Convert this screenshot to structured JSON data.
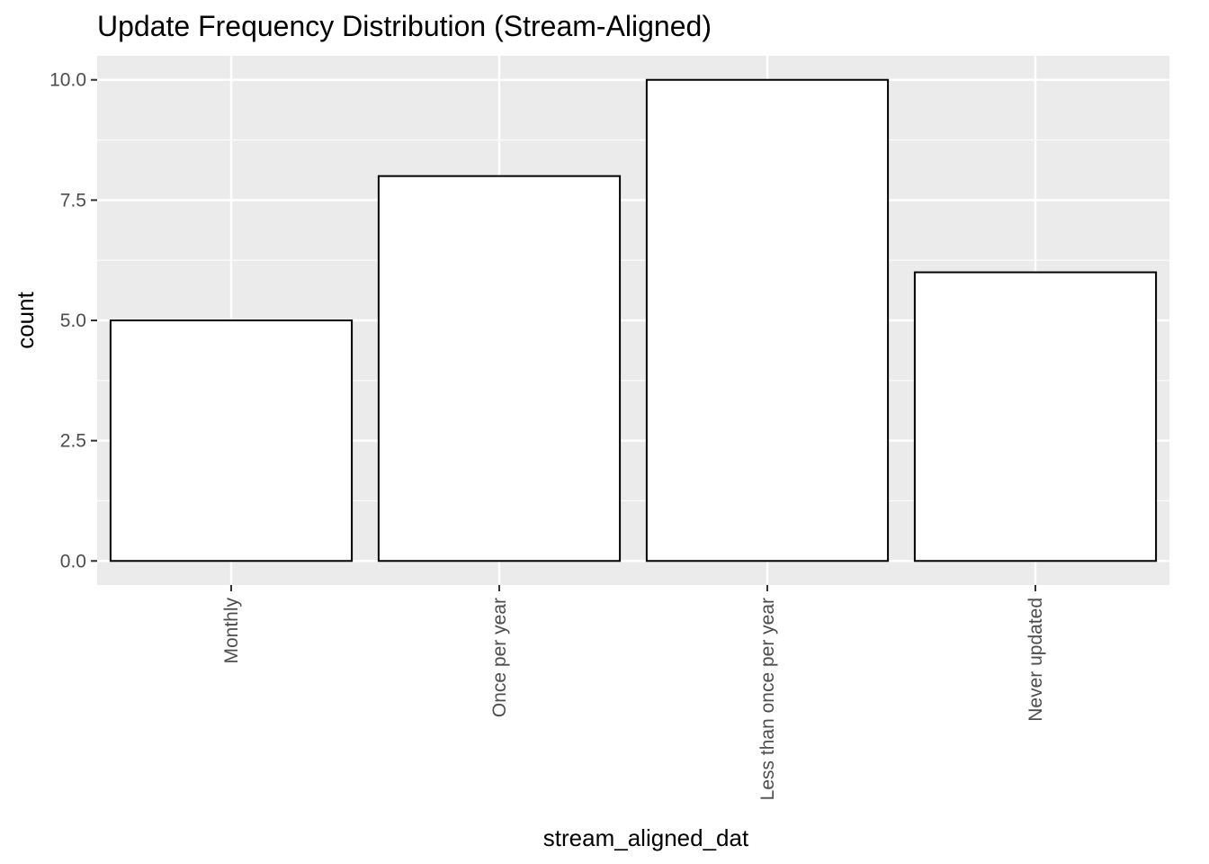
{
  "chart_data": {
    "type": "bar",
    "title": "Update Frequency Distribution (Stream-Aligned)",
    "xlabel": "stream_aligned_dat",
    "ylabel": "count",
    "categories": [
      "Monthly",
      "Once per year",
      "Less than once per year",
      "Never updated"
    ],
    "values": [
      5,
      8,
      10,
      6
    ],
    "ylim": [
      -0.5,
      10.5
    ],
    "yticks": [
      0,
      2.5,
      5,
      7.5,
      10
    ],
    "ytick_labels": [
      "0.0",
      "2.5",
      "5.0",
      "7.5",
      "10.0"
    ],
    "grid": true,
    "x_tick_rotation": "vertical",
    "colors": {
      "panel_background": "#ebebeb",
      "grid_line": "#ffffff",
      "bar_fill": "#ffffff",
      "bar_outline": "#000000",
      "tick_label": "#4d4d4d",
      "tick_mark": "#333333"
    }
  }
}
